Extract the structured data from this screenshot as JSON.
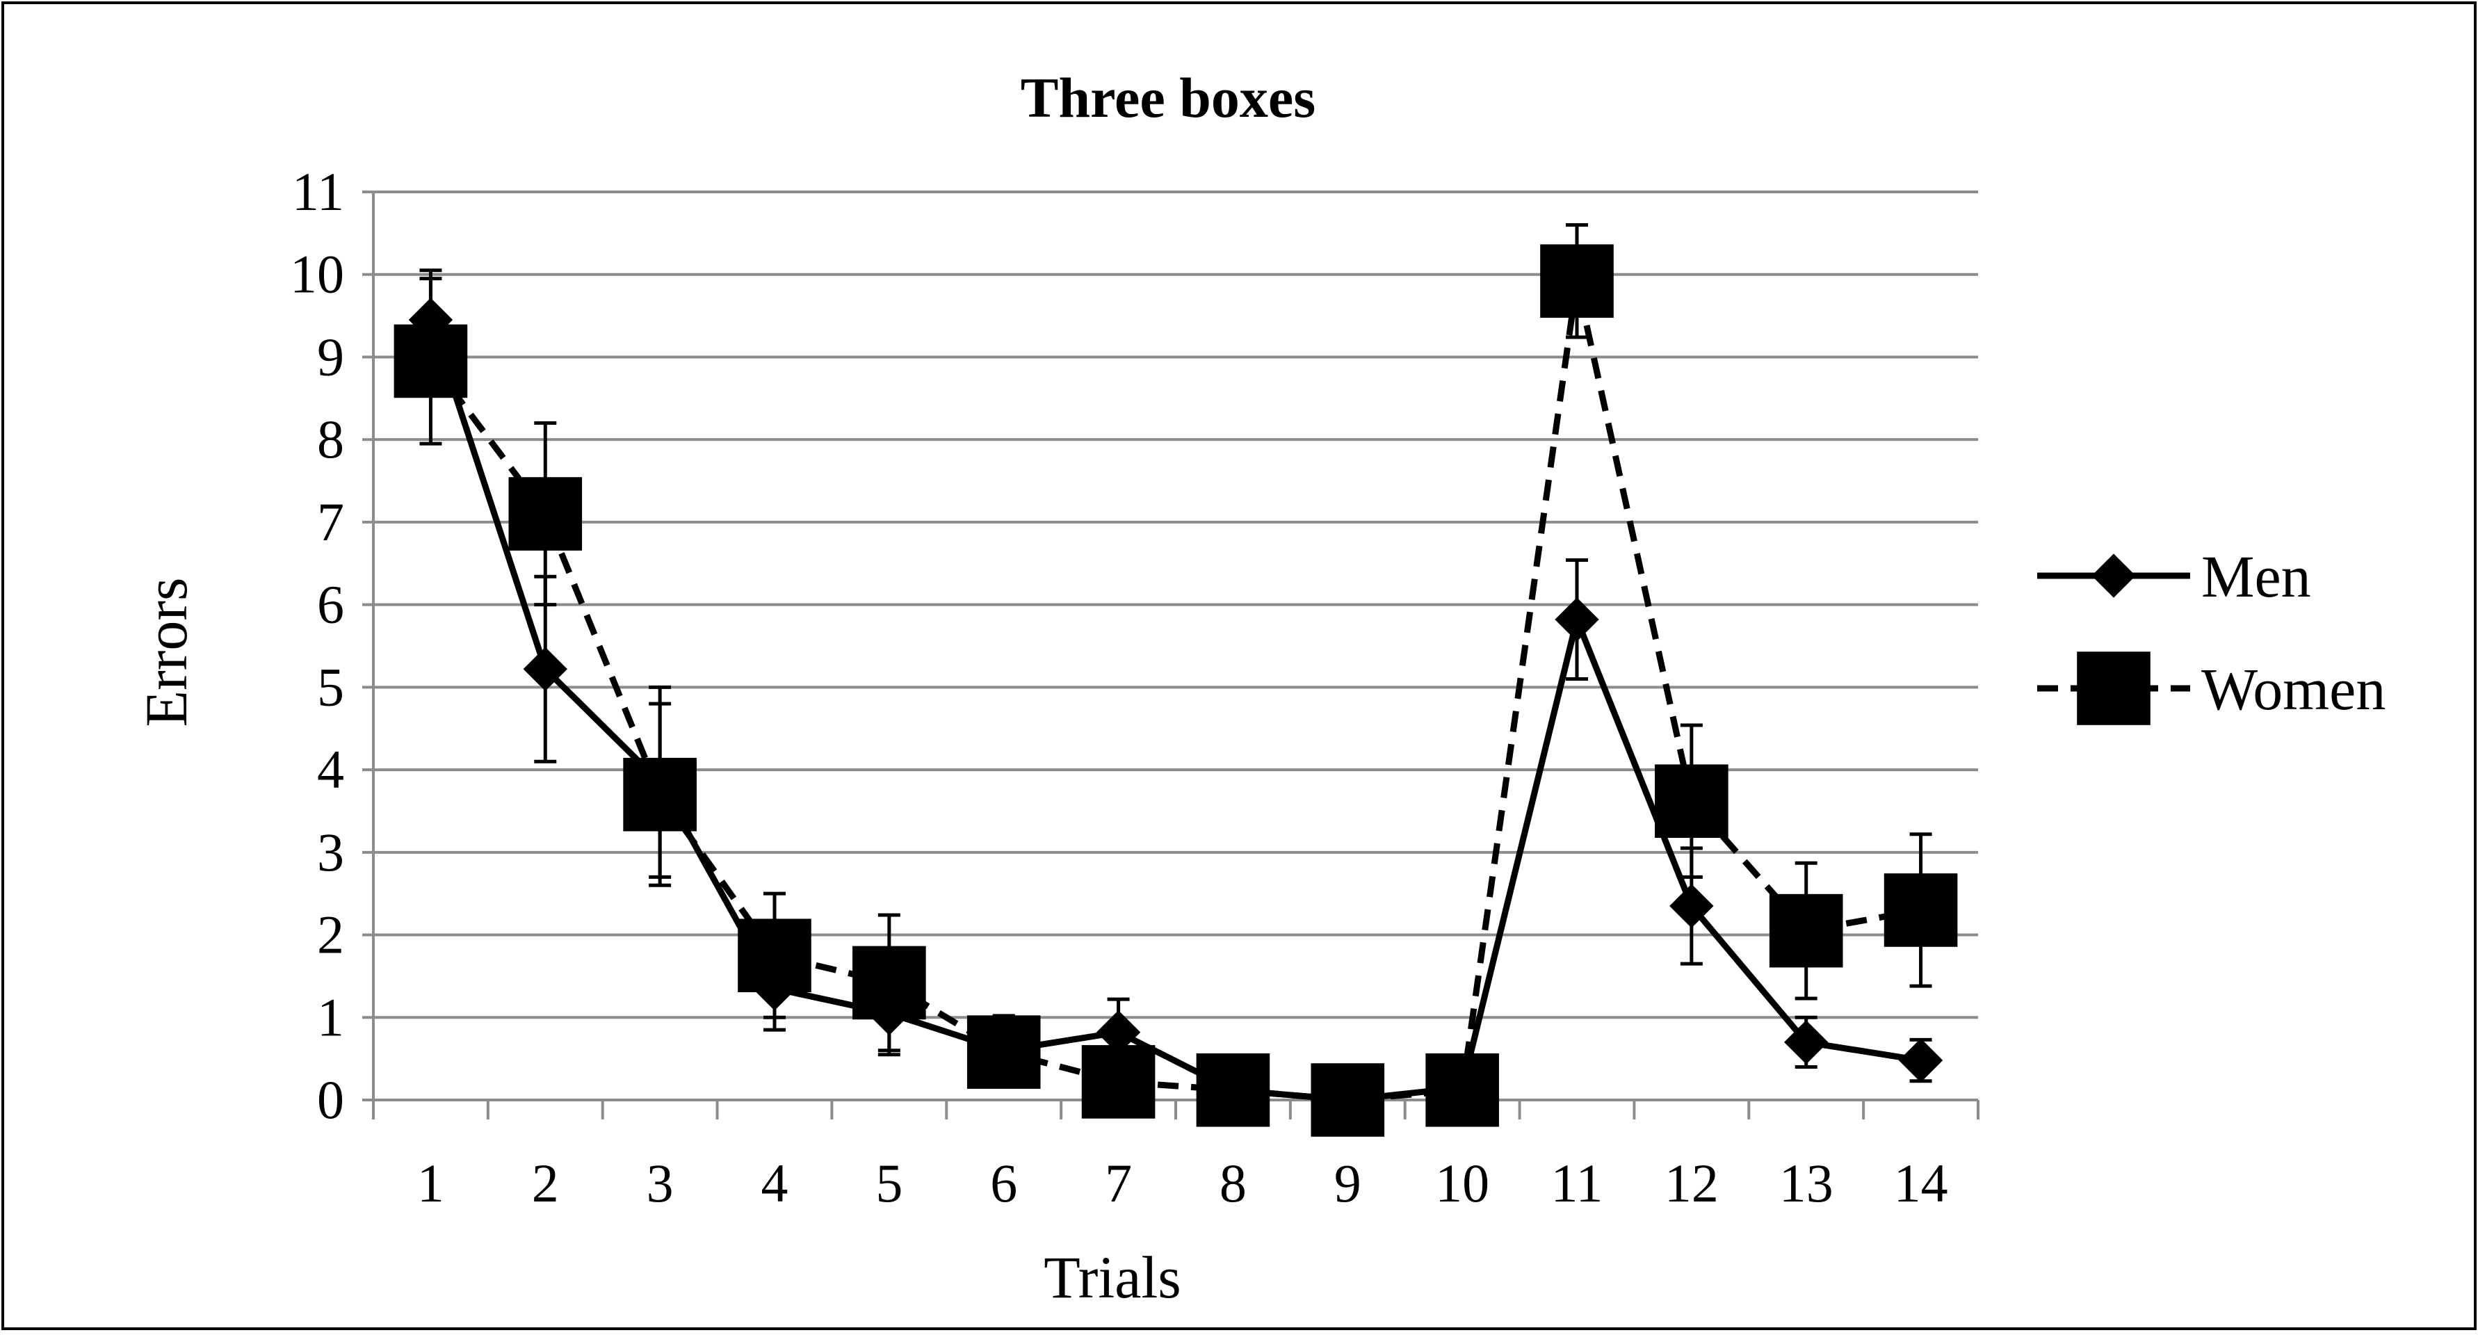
{
  "chart_data": {
    "type": "line",
    "title": "Three boxes",
    "xlabel": "Trials",
    "ylabel": "Errors",
    "x": [
      1,
      2,
      3,
      4,
      5,
      6,
      7,
      8,
      9,
      10,
      11,
      12,
      13,
      14
    ],
    "xtick_labels": [
      "1",
      "2",
      "3",
      "4",
      "5",
      "6",
      "7",
      "8",
      "9",
      "10",
      "11",
      "12",
      "13",
      "14"
    ],
    "ylim": [
      0,
      11
    ],
    "yticks": [
      0,
      1,
      2,
      3,
      4,
      5,
      6,
      7,
      8,
      9,
      10,
      11
    ],
    "grid": "horizontal major gridlines",
    "legend_position": "right",
    "series": [
      {
        "name": "Men",
        "marker": "diamond",
        "line_style": "solid",
        "color": "#000000",
        "values": [
          9.45,
          5.22,
          3.85,
          1.35,
          1.05,
          0.6,
          0.82,
          0.12,
          0.0,
          0.15,
          5.82,
          2.35,
          0.7,
          0.48
        ],
        "error": [
          0.6,
          1.12,
          1.15,
          0.5,
          0.5,
          0.42,
          0.4,
          0.08,
          0.0,
          0.08,
          0.72,
          0.7,
          0.3,
          0.25
        ]
      },
      {
        "name": "Women",
        "marker": "square",
        "line_style": "dashed",
        "color": "#000000",
        "values": [
          8.95,
          7.1,
          3.7,
          1.75,
          1.42,
          0.58,
          0.22,
          0.12,
          0.0,
          0.12,
          9.92,
          3.62,
          2.05,
          2.3
        ],
        "error": [
          1.0,
          1.1,
          1.1,
          0.75,
          0.82,
          0.42,
          0.1,
          0.08,
          0.0,
          0.08,
          0.68,
          0.92,
          0.82,
          0.92
        ]
      }
    ]
  }
}
